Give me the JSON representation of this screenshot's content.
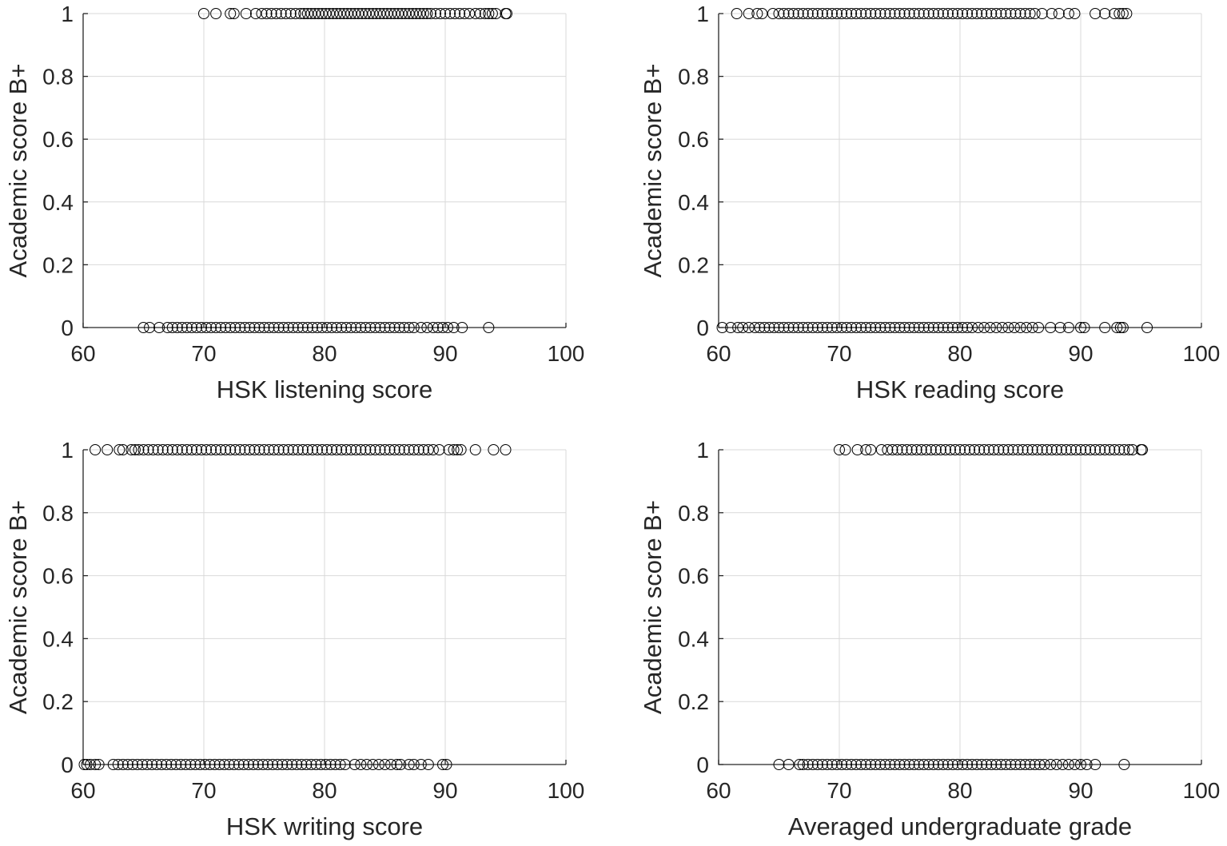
{
  "chart_data": [
    {
      "type": "scatter",
      "xlabel": "HSK listening score",
      "ylabel": "Academic score B+",
      "xlim": [
        60,
        100
      ],
      "ylim": [
        0,
        1
      ],
      "xticks": [
        "60",
        "70",
        "80",
        "90",
        "100"
      ],
      "yticks": [
        "0",
        "0.2",
        "0.4",
        "0.6",
        "0.8",
        "1"
      ],
      "grid": true,
      "marker": "open-circle",
      "series": [
        {
          "y": 1,
          "x": [
            70,
            71,
            72.2,
            72.5,
            73.5,
            74.3,
            74.8,
            75.2,
            75.6,
            76,
            76.4,
            76.8,
            77.2,
            77.6,
            78,
            78.3,
            78.6,
            78.9,
            79.2,
            79.5,
            79.8,
            80.1,
            80.4,
            80.7,
            81,
            81.3,
            81.6,
            81.9,
            82.2,
            82.5,
            82.8,
            83.1,
            83.4,
            83.7,
            84,
            84.3,
            84.6,
            84.9,
            85.2,
            85.5,
            85.8,
            86.1,
            86.4,
            86.7,
            87,
            87.3,
            87.6,
            87.9,
            88.2,
            88.5,
            88.8,
            89.2,
            89.6,
            90,
            90.4,
            90.8,
            91.2,
            91.6,
            92,
            92.5,
            92.9,
            93.3,
            93.6,
            93.9,
            94.2,
            95,
            95.1
          ]
        },
        {
          "y": 0,
          "x": [
            65,
            65.5,
            66.3,
            67,
            67.4,
            67.8,
            68.2,
            68.6,
            69,
            69.4,
            69.8,
            70.2,
            70.6,
            71,
            71.4,
            71.8,
            72.2,
            72.6,
            73,
            73.4,
            73.8,
            74.2,
            74.6,
            75,
            75.4,
            75.8,
            76.2,
            76.6,
            77,
            77.4,
            77.8,
            78.2,
            78.6,
            79,
            79.4,
            79.8,
            80.2,
            80.6,
            81,
            81.4,
            81.8,
            82.2,
            82.6,
            83,
            83.4,
            83.8,
            84.2,
            84.6,
            85,
            85.4,
            85.8,
            86.2,
            86.6,
            87,
            87.4,
            88,
            88.5,
            89,
            89.4,
            89.8,
            90.2,
            90.7,
            91.4,
            93.6
          ]
        }
      ]
    },
    {
      "type": "scatter",
      "xlabel": "HSK reading score",
      "ylabel": "Academic score B+",
      "xlim": [
        60,
        100
      ],
      "ylim": [
        0,
        1
      ],
      "xticks": [
        "60",
        "70",
        "80",
        "90",
        "100"
      ],
      "yticks": [
        "0",
        "0.2",
        "0.4",
        "0.6",
        "0.8",
        "1"
      ],
      "grid": true,
      "marker": "open-circle",
      "series": [
        {
          "y": 1,
          "x": [
            61.5,
            62.5,
            63.2,
            63.6,
            64.5,
            65,
            65.4,
            65.8,
            66.2,
            66.6,
            67,
            67.4,
            67.8,
            68.2,
            68.6,
            69,
            69.4,
            69.8,
            70.2,
            70.6,
            71,
            71.4,
            71.8,
            72.2,
            72.6,
            73,
            73.4,
            73.8,
            74.2,
            74.6,
            75,
            75.4,
            75.8,
            76.2,
            76.6,
            77,
            77.4,
            77.8,
            78.2,
            78.6,
            79,
            79.4,
            79.8,
            80.2,
            80.6,
            81,
            81.4,
            81.8,
            82.2,
            82.6,
            83,
            83.4,
            83.8,
            84.2,
            84.6,
            85,
            85.4,
            85.8,
            86.2,
            86.8,
            87.6,
            88.2,
            89,
            89.5,
            91.2,
            92,
            92.8,
            93.2,
            93.5,
            93.8
          ]
        },
        {
          "y": 0,
          "x": [
            60.3,
            61,
            61.6,
            62,
            62.5,
            63,
            63.4,
            63.8,
            64.2,
            64.6,
            65,
            65.4,
            65.8,
            66.2,
            66.6,
            67,
            67.4,
            67.8,
            68.2,
            68.6,
            69,
            69.4,
            69.8,
            70.2,
            70.6,
            71,
            71.4,
            71.8,
            72.2,
            72.6,
            73,
            73.4,
            73.8,
            74.2,
            74.6,
            75,
            75.4,
            75.8,
            76.2,
            76.6,
            77,
            77.4,
            77.8,
            78.2,
            78.6,
            79,
            79.4,
            79.8,
            80.2,
            80.6,
            81,
            81.5,
            82,
            82.5,
            83,
            83.5,
            84,
            84.5,
            85,
            85.5,
            86,
            86.5,
            87.5,
            88.3,
            89,
            90,
            90.3,
            92,
            93,
            93.3,
            93.5,
            95.5
          ]
        }
      ]
    },
    {
      "type": "scatter",
      "xlabel": "HSK writing score",
      "ylabel": "Academic score B+",
      "xlim": [
        60,
        100
      ],
      "ylim": [
        0,
        1
      ],
      "xticks": [
        "60",
        "70",
        "80",
        "90",
        "100"
      ],
      "yticks": [
        "0",
        "0.2",
        "0.4",
        "0.6",
        "0.8",
        "1"
      ],
      "grid": true,
      "marker": "open-circle",
      "series": [
        {
          "y": 1,
          "x": [
            61,
            62,
            63,
            63.3,
            64,
            64.3,
            64.6,
            65,
            65.4,
            65.8,
            66.2,
            66.6,
            67,
            67.4,
            67.8,
            68.2,
            68.6,
            69,
            69.4,
            69.8,
            70.2,
            70.6,
            71,
            71.4,
            71.8,
            72.2,
            72.6,
            73,
            73.4,
            73.8,
            74.2,
            74.6,
            75,
            75.4,
            75.8,
            76.2,
            76.6,
            77,
            77.4,
            77.8,
            78.2,
            78.6,
            79,
            79.4,
            79.8,
            80.2,
            80.6,
            81,
            81.4,
            81.8,
            82.2,
            82.6,
            83,
            83.4,
            83.8,
            84.2,
            84.6,
            85,
            85.4,
            85.8,
            86.2,
            86.6,
            87,
            87.4,
            87.8,
            88.2,
            88.6,
            89,
            89.5,
            90.3,
            90.7,
            91,
            91.3,
            92.5,
            94,
            95
          ]
        },
        {
          "y": 0,
          "x": [
            60.1,
            60.3,
            60.6,
            61,
            61.3,
            62.5,
            62.9,
            63.3,
            63.7,
            64.1,
            64.5,
            64.9,
            65.3,
            65.7,
            66.1,
            66.5,
            66.9,
            67.3,
            67.7,
            68.1,
            68.5,
            68.9,
            69.3,
            69.7,
            70.1,
            70.5,
            70.9,
            71.3,
            71.7,
            72.1,
            72.5,
            72.9,
            73.3,
            73.7,
            74.1,
            74.5,
            74.9,
            75.3,
            75.7,
            76.1,
            76.5,
            76.9,
            77.3,
            77.7,
            78.1,
            78.5,
            78.9,
            79.3,
            79.7,
            80.1,
            80.5,
            80.9,
            81.3,
            81.7,
            82.5,
            83,
            83.5,
            84,
            84.5,
            85,
            85.5,
            86,
            86.3,
            87,
            87.4,
            88,
            88.6,
            89.8,
            90.1
          ]
        }
      ]
    },
    {
      "type": "scatter",
      "xlabel": "Averaged undergraduate grade",
      "ylabel": "Academic score B+",
      "xlim": [
        60,
        100
      ],
      "ylim": [
        0,
        1
      ],
      "xticks": [
        "60",
        "70",
        "80",
        "90",
        "100"
      ],
      "yticks": [
        "0",
        "0.2",
        "0.4",
        "0.6",
        "0.8",
        "1"
      ],
      "grid": true,
      "marker": "open-circle",
      "series": [
        {
          "y": 1,
          "x": [
            70,
            70.5,
            71.5,
            72.2,
            72.6,
            73.5,
            74,
            74.4,
            74.8,
            75.2,
            75.6,
            76,
            76.4,
            76.8,
            77.2,
            77.6,
            78,
            78.4,
            78.8,
            79.2,
            79.6,
            80,
            80.4,
            80.8,
            81.2,
            81.6,
            82,
            82.4,
            82.8,
            83.2,
            83.6,
            84,
            84.4,
            84.8,
            85.2,
            85.6,
            86,
            86.4,
            86.8,
            87.2,
            87.6,
            88,
            88.4,
            88.8,
            89.2,
            89.6,
            90,
            90.4,
            90.8,
            91.2,
            91.6,
            92,
            92.4,
            92.8,
            93.2,
            93.6,
            94,
            94.3,
            95,
            95.1
          ]
        },
        {
          "y": 0,
          "x": [
            65,
            65.8,
            66.7,
            67,
            67.4,
            67.8,
            68.2,
            68.6,
            69,
            69.4,
            69.8,
            70.2,
            70.6,
            71,
            71.4,
            71.8,
            72.2,
            72.6,
            73,
            73.4,
            73.8,
            74.2,
            74.6,
            75,
            75.4,
            75.8,
            76.2,
            76.6,
            77,
            77.4,
            77.8,
            78.2,
            78.6,
            79,
            79.4,
            79.8,
            80.2,
            80.6,
            81,
            81.4,
            81.8,
            82.2,
            82.6,
            83,
            83.4,
            83.8,
            84.2,
            84.6,
            85,
            85.4,
            85.8,
            86.2,
            86.6,
            87,
            87.5,
            88,
            88.5,
            89,
            89.5,
            90,
            90.5,
            91.2,
            93.6
          ]
        }
      ]
    }
  ]
}
